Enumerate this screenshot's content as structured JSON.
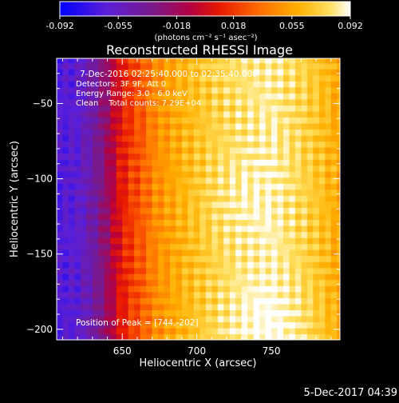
{
  "colorbar": {
    "tick_labels": [
      "-0.092",
      "-0.055",
      "-0.018",
      "0.018",
      "0.055",
      "0.092"
    ],
    "range": [
      -0.092,
      0.092
    ],
    "unit_label": "(photons cm⁻² s⁻¹ asec⁻²)"
  },
  "chart_data": {
    "type": "heatmap",
    "title": "Reconstructed RHESSI Image",
    "xlabel": "Heliocentric X (arcsec)",
    "ylabel": "Heliocentric Y (arcsec)",
    "x_ticks": [
      650,
      700,
      750
    ],
    "y_ticks": [
      -50,
      -100,
      -150,
      -200
    ],
    "xlim": [
      606,
      796
    ],
    "ylim": [
      -207,
      -20
    ],
    "grid": false,
    "value_range": [
      -0.092,
      0.092
    ],
    "peak": [
      744,
      -202
    ],
    "annotations": [
      "7-Dec-2016 02:25:40.000 to 02:35:40.000",
      "Detectors: 3F 9F, Att 0",
      "Energy Range: 3.0 - 6.0 keV",
      "Clean    Total counts: 7.29E+04",
      "Position of Peak = [744,-202]"
    ],
    "value_profile_x": {
      "x": [
        606,
        620,
        632,
        640,
        648,
        656,
        664,
        672,
        690,
        710,
        730,
        750,
        770,
        785,
        796
      ],
      "value": [
        -0.065,
        -0.06,
        -0.04,
        -0.02,
        0.005,
        0.02,
        0.03,
        0.045,
        0.06,
        0.072,
        0.08,
        0.085,
        0.075,
        0.065,
        0.055
      ]
    }
  },
  "footer": {
    "timestamp": "5-Dec-2017 04:39"
  }
}
